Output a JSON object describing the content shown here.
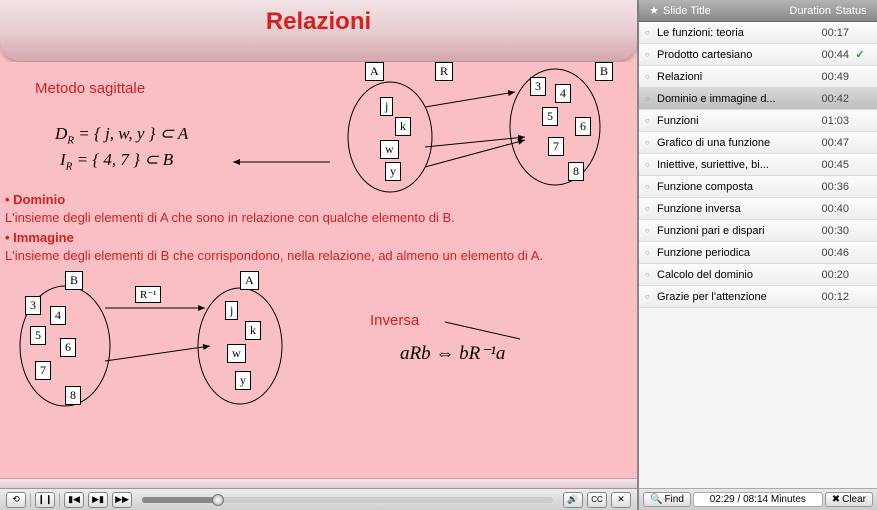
{
  "title": "Relazioni",
  "colors": {
    "slide_bg": "#fabfc4",
    "title_red": "#d62020",
    "text_red": "#d62020",
    "header_grad_top": "#f2e4e6",
    "header_grad_bot": "#d4a8ae"
  },
  "slide": {
    "metodo_label": "Metodo sagittale",
    "math1": "D",
    "math1_sub": "R",
    "math1_rest": " = { j, w, y } ⊂ A",
    "math2": "I",
    "math2_sub": "R",
    "math2_rest": " = { 4, 7 } ⊂ B",
    "dominio_hdr": "• Dominio",
    "dominio_txt": "L'insieme degli elementi di A che sono in relazione con qualche elemento di B.",
    "immagine_hdr": "• Immagine",
    "immagine_txt": "L'insieme degli elementi di B che corrispondono, nella relazione, ad almeno un elemento di A.",
    "inversa_label": "Inversa",
    "inversa_math": "aRb ⇔ bR⁻¹a",
    "diag1": {
      "setA_label": "A",
      "setB_label": "B",
      "R_label": "R",
      "A_nodes": [
        "j",
        "k",
        "w",
        "y"
      ],
      "B_nodes": [
        "3",
        "4",
        "5",
        "6",
        "7",
        "8"
      ]
    },
    "diag2": {
      "setA_label": "A",
      "setB_label": "B",
      "R_label": "R⁻¹",
      "B_nodes": [
        "3",
        "4",
        "5",
        "6",
        "7",
        "8"
      ],
      "A_nodes": [
        "j",
        "k",
        "w",
        "y"
      ]
    }
  },
  "playback": {
    "buttons": {
      "restart": "⟲",
      "pause": "❙❙",
      "prev": "▮◀",
      "next": "▶▮",
      "fwd": "▶▶",
      "vol": "🔊",
      "cc": "CC",
      "exit": "✕"
    }
  },
  "sidebar": {
    "headers": {
      "star": "★",
      "title": "Slide Title",
      "duration": "Duration",
      "status": "Status"
    },
    "items": [
      {
        "title": "Le funzioni: teoria",
        "dur": "00:17",
        "status": ""
      },
      {
        "title": "Prodotto cartesiano",
        "dur": "00:44",
        "status": "✓"
      },
      {
        "title": "Relazioni",
        "dur": "00:49",
        "status": ""
      },
      {
        "title": "Dominio e immagine d...",
        "dur": "00:42",
        "status": "",
        "active": true
      },
      {
        "title": "Funzioni",
        "dur": "01:03",
        "status": ""
      },
      {
        "title": "Grafico di una funzione",
        "dur": "00:47",
        "status": ""
      },
      {
        "title": "Iniettive, suriettive, bi...",
        "dur": "00:45",
        "status": ""
      },
      {
        "title": "Funzione composta",
        "dur": "00:36",
        "status": ""
      },
      {
        "title": "Funzione inversa",
        "dur": "00:40",
        "status": ""
      },
      {
        "title": "Funzioni pari e dispari",
        "dur": "00:30",
        "status": ""
      },
      {
        "title": "Funzione periodica",
        "dur": "00:46",
        "status": ""
      },
      {
        "title": "Calcolo del dominio",
        "dur": "00:20",
        "status": ""
      },
      {
        "title": "Grazie per l'attenzione",
        "dur": "00:12",
        "status": ""
      }
    ],
    "footer": {
      "find": "Find",
      "time": "02:29 / 08:14 Minutes",
      "clear": "Clear"
    }
  }
}
